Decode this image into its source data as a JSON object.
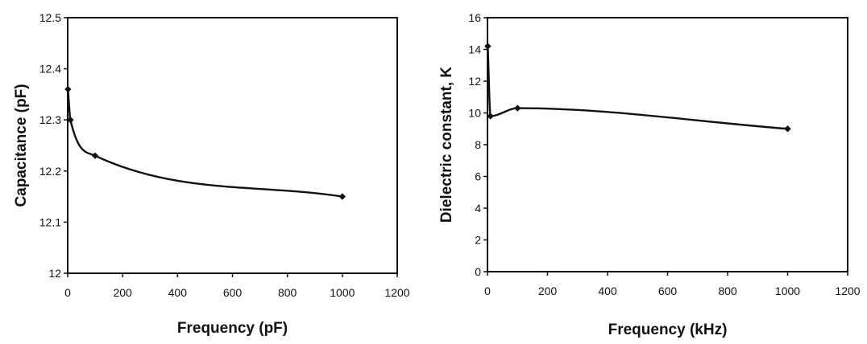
{
  "chart_data": [
    {
      "type": "line",
      "title": "",
      "xlabel": "Frequency (pF)",
      "ylabel": "Capacitance (pF)",
      "xlim": [
        0,
        1200
      ],
      "ylim": [
        12,
        12.5
      ],
      "xticks": [
        0,
        200,
        400,
        600,
        800,
        1000,
        1200
      ],
      "yticks": [
        12,
        12.1,
        12.2,
        12.3,
        12.4,
        12.5
      ],
      "xtick_labels": [
        "0",
        "200",
        "400",
        "600",
        "800",
        "1000",
        "1200"
      ],
      "ytick_labels": [
        "12",
        "12.1",
        "12.2",
        "12.3",
        "12.4",
        "12.5"
      ],
      "grid": false,
      "smooth": true,
      "series": [
        {
          "x": [
            1,
            10,
            100,
            1000
          ],
          "y": [
            12.36,
            12.3,
            12.23,
            12.15
          ],
          "color": "#111111",
          "marker": "diamond"
        }
      ]
    },
    {
      "type": "line",
      "title": "",
      "xlabel": "Frequency (kHz)",
      "ylabel": "Dielectric constant, K",
      "xlim": [
        0,
        1200
      ],
      "ylim": [
        0,
        16
      ],
      "xticks": [
        0,
        200,
        400,
        600,
        800,
        1000,
        1200
      ],
      "yticks": [
        0,
        2,
        4,
        6,
        8,
        10,
        12,
        14,
        16
      ],
      "xtick_labels": [
        "0",
        "200",
        "400",
        "600",
        "800",
        "1000",
        "1200"
      ],
      "ytick_labels": [
        "0",
        "2",
        "4",
        "6",
        "8",
        "10",
        "12",
        "14",
        "16"
      ],
      "grid": false,
      "smooth": true,
      "series": [
        {
          "x": [
            1,
            10,
            100,
            1000
          ],
          "y": [
            14.2,
            9.8,
            10.3,
            9.0
          ],
          "color": "#111111",
          "marker": "diamond"
        }
      ]
    }
  ]
}
